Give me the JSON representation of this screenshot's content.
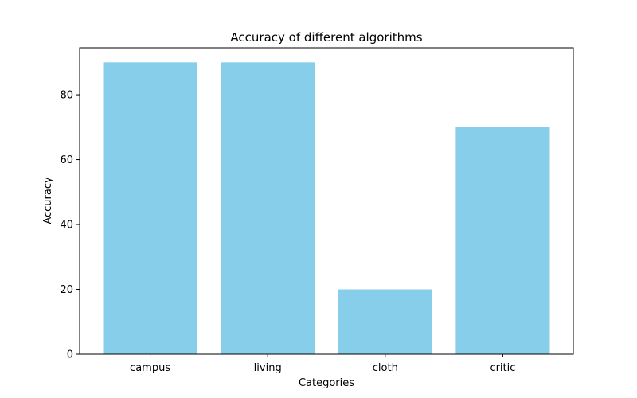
{
  "chart_data": {
    "type": "bar",
    "title": "Accuracy of different algorithms",
    "xlabel": "Categories",
    "ylabel": "Accuracy",
    "categories": [
      "campus",
      "living",
      "cloth",
      "critic"
    ],
    "values": [
      90,
      90,
      20,
      70
    ],
    "ylim": [
      0,
      94.5
    ],
    "yticks": [
      0,
      20,
      40,
      60,
      80
    ],
    "bar_color": "#87CEEB",
    "grid": false,
    "legend": "none"
  }
}
